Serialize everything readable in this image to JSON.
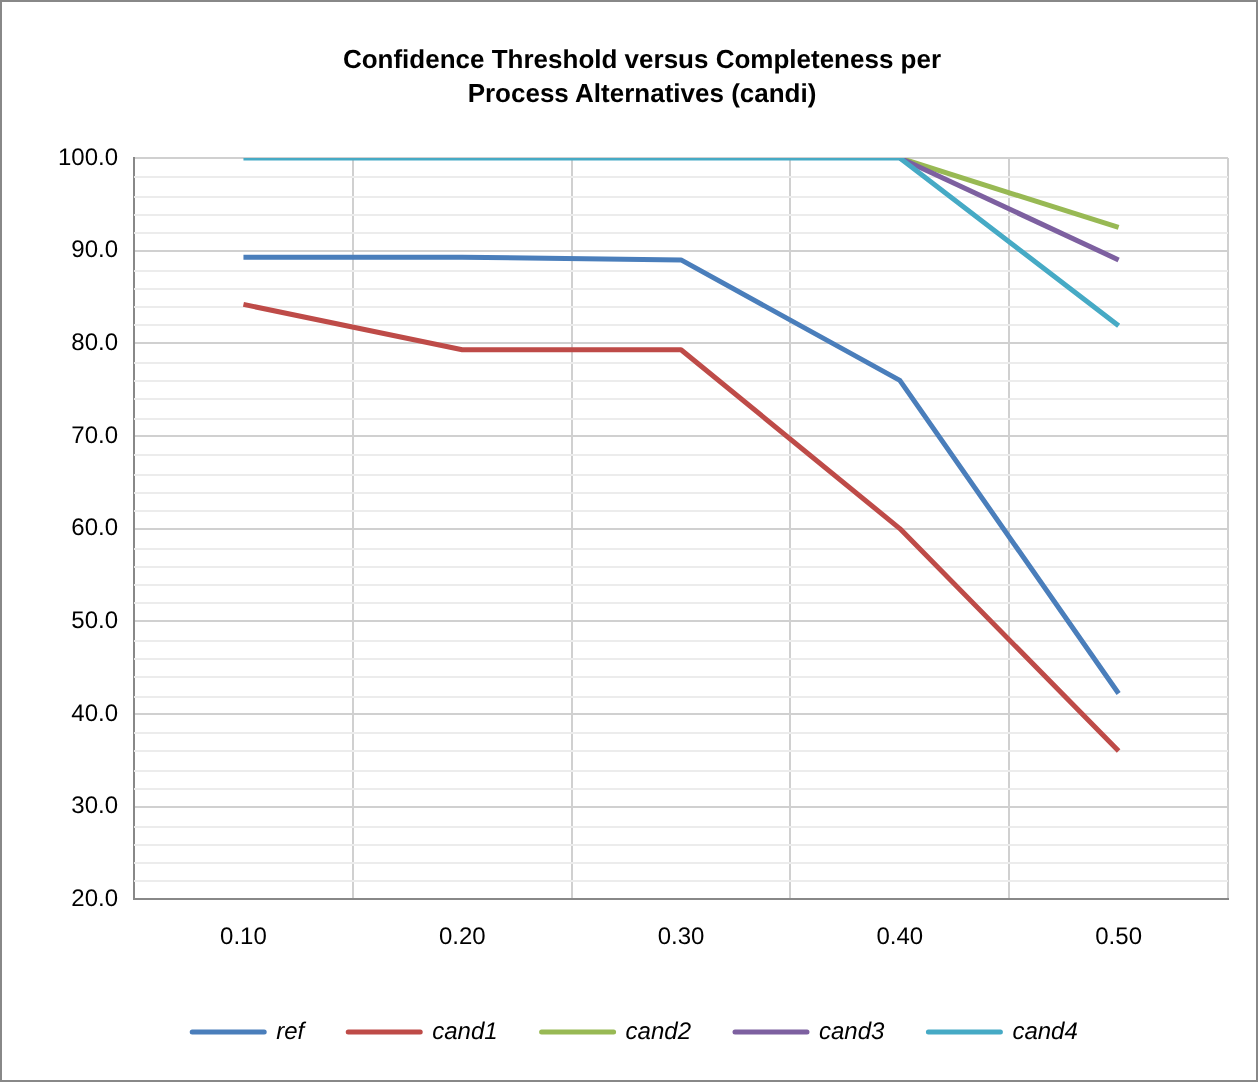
{
  "chart_data": {
    "type": "line",
    "title": "Confidence Threshold versus Completeness per Process Alternatives (candi)",
    "categories": [
      "0.10",
      "0.20",
      "0.30",
      "0.40",
      "0.50"
    ],
    "series": [
      {
        "name": "ref",
        "color": "#4a7ebb",
        "values": [
          89.3,
          89.3,
          89.0,
          76.0,
          42.2
        ]
      },
      {
        "name": "cand1",
        "color": "#be4b48",
        "values": [
          84.2,
          79.3,
          79.3,
          60.0,
          36.0
        ]
      },
      {
        "name": "cand2",
        "color": "#98b954",
        "values": [
          null,
          null,
          null,
          100,
          92.5
        ]
      },
      {
        "name": "cand3",
        "color": "#7d60a0",
        "values": [
          null,
          null,
          null,
          100,
          89.0
        ]
      },
      {
        "name": "cand4",
        "color": "#46aac5",
        "values": [
          100,
          100,
          100,
          100,
          81.9
        ]
      }
    ],
    "ylim": [
      20,
      100
    ],
    "yticks": [
      {
        "value": 20,
        "label": "20.0"
      },
      {
        "value": 30,
        "label": "30.0"
      },
      {
        "value": 40,
        "label": "40.0"
      },
      {
        "value": 50,
        "label": "50.0"
      },
      {
        "value": 60,
        "label": "60.0"
      },
      {
        "value": 70,
        "label": "70.0"
      },
      {
        "value": 80,
        "label": "80.0"
      },
      {
        "value": 90,
        "label": "90.0"
      },
      {
        "value": 100,
        "label": "100.0"
      }
    ],
    "grid": true,
    "legend": "bottom",
    "marker": "none",
    "line_style": "solid"
  }
}
